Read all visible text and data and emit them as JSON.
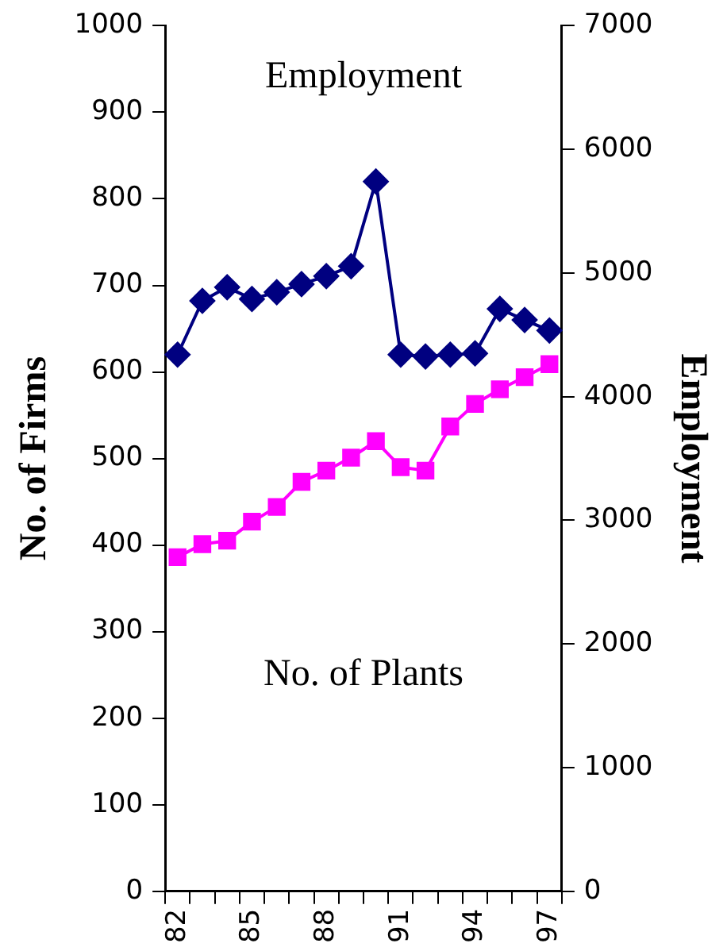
{
  "chart_data": {
    "type": "line",
    "ylabel": "No. of Firms",
    "y2label": "Employment",
    "annotations": [
      "Employment",
      "No. of Plants"
    ],
    "categories": [
      "82",
      null,
      null,
      "85",
      null,
      null,
      "88",
      null,
      null,
      "91",
      null,
      null,
      "94",
      null,
      null,
      "97"
    ],
    "series": [
      {
        "color": "#000080",
        "marker": "diamond",
        "axis": "y2",
        "values": [
          4340,
          4775,
          4885,
          4790,
          4845,
          4910,
          4975,
          5055,
          5740,
          4340,
          4325,
          4340,
          4350,
          4710,
          4620,
          4535
        ]
      },
      {
        "color": "#ff00ff",
        "marker": "square",
        "axis": "y",
        "values": [
          386,
          401,
          405,
          427,
          444,
          473,
          486,
          501,
          520,
          490,
          486,
          537,
          563,
          580,
          594,
          609
        ]
      }
    ],
    "ylim": [
      0,
      1000
    ],
    "yticks": [
      0,
      100,
      200,
      300,
      400,
      500,
      600,
      700,
      800,
      900,
      1000
    ],
    "y2lim": [
      0,
      7000
    ],
    "y2ticks": [
      0,
      1000,
      2000,
      3000,
      4000,
      5000,
      6000,
      7000
    ],
    "grid": false,
    "legend": false
  }
}
